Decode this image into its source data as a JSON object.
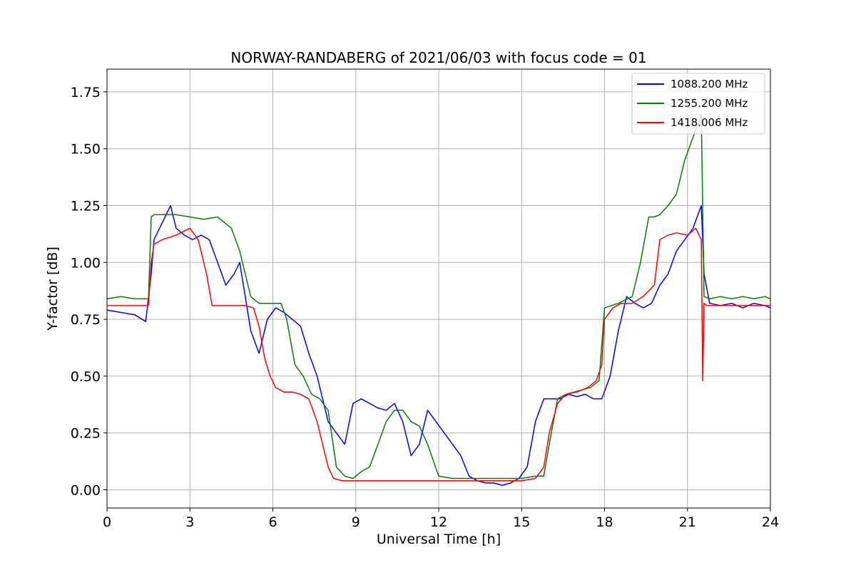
{
  "chart_data": {
    "type": "line",
    "title": "NORWAY-RANDABERG of 2021/06/03 with focus code = 01",
    "xlabel": "Universal Time [h]",
    "ylabel": "Y-factor [dB]",
    "xlim": [
      0,
      24
    ],
    "ylim": [
      -0.08,
      1.85
    ],
    "xticks": [
      0,
      3,
      6,
      9,
      12,
      15,
      18,
      21,
      24
    ],
    "xtick_labels": [
      "0",
      "3",
      "6",
      "9",
      "12",
      "15",
      "18",
      "21",
      "24"
    ],
    "yticks": [
      0.0,
      0.25,
      0.5,
      0.75,
      1.0,
      1.25,
      1.5,
      1.75
    ],
    "ytick_labels": [
      "0.00",
      "0.25",
      "0.50",
      "0.75",
      "1.00",
      "1.25",
      "1.50",
      "1.75"
    ],
    "grid": true,
    "legend_position": "upper-right",
    "series": [
      {
        "name": "1088.200 MHz",
        "color": "#0000ff",
        "x": [
          0,
          0.5,
          1.0,
          1.4,
          1.6,
          1.7,
          1.9,
          2.1,
          2.3,
          2.5,
          2.8,
          3.1,
          3.4,
          3.7,
          4.0,
          4.3,
          4.6,
          4.8,
          5.0,
          5.2,
          5.5,
          5.8,
          6.1,
          6.4,
          6.7,
          7.0,
          7.3,
          7.6,
          7.8,
          8.0,
          8.3,
          8.6,
          8.9,
          9.2,
          9.5,
          9.8,
          10.1,
          10.4,
          10.7,
          11.0,
          11.3,
          11.6,
          11.9,
          12.2,
          12.5,
          12.8,
          13.1,
          13.4,
          13.7,
          14.0,
          14.3,
          14.6,
          14.9,
          15.2,
          15.5,
          15.8,
          16.1,
          16.4,
          16.7,
          17.0,
          17.3,
          17.6,
          17.9,
          18.2,
          18.5,
          18.8,
          19.1,
          19.4,
          19.7,
          20.0,
          20.3,
          20.6,
          20.9,
          21.2,
          21.5,
          21.6,
          21.8,
          22.2,
          22.6,
          23.0,
          23.4,
          23.8,
          24.0
        ],
        "y": [
          0.79,
          0.78,
          0.77,
          0.74,
          0.95,
          1.1,
          1.15,
          1.2,
          1.25,
          1.15,
          1.12,
          1.1,
          1.12,
          1.1,
          1.0,
          0.9,
          0.95,
          1.0,
          0.85,
          0.7,
          0.6,
          0.75,
          0.8,
          0.78,
          0.75,
          0.72,
          0.6,
          0.5,
          0.4,
          0.3,
          0.25,
          0.2,
          0.38,
          0.4,
          0.38,
          0.36,
          0.35,
          0.38,
          0.3,
          0.15,
          0.2,
          0.35,
          0.3,
          0.25,
          0.2,
          0.15,
          0.06,
          0.04,
          0.03,
          0.03,
          0.02,
          0.03,
          0.05,
          0.1,
          0.3,
          0.4,
          0.4,
          0.4,
          0.42,
          0.41,
          0.42,
          0.4,
          0.4,
          0.5,
          0.7,
          0.85,
          0.82,
          0.8,
          0.82,
          0.9,
          0.95,
          1.05,
          1.1,
          1.15,
          1.25,
          0.95,
          0.82,
          0.81,
          0.82,
          0.8,
          0.82,
          0.81,
          0.8
        ]
      },
      {
        "name": "1255.200 MHz",
        "color": "#008000",
        "x": [
          0,
          0.5,
          1.0,
          1.5,
          1.6,
          1.7,
          2.0,
          2.5,
          3.0,
          3.5,
          4.0,
          4.5,
          4.8,
          5.0,
          5.2,
          5.5,
          6.0,
          6.3,
          6.5,
          6.8,
          7.1,
          7.4,
          7.7,
          8.0,
          8.3,
          8.6,
          8.9,
          9.2,
          9.5,
          9.8,
          10.1,
          10.4,
          10.7,
          11.0,
          11.3,
          11.6,
          12.0,
          12.5,
          13.0,
          13.5,
          14.0,
          14.5,
          15.0,
          15.5,
          15.8,
          16.0,
          16.3,
          16.6,
          16.9,
          17.2,
          17.5,
          17.8,
          18.0,
          18.5,
          19.0,
          19.3,
          19.6,
          19.8,
          20.0,
          20.3,
          20.6,
          20.9,
          21.2,
          21.5,
          21.6,
          21.8,
          22.2,
          22.6,
          23.0,
          23.4,
          23.8,
          24.0
        ],
        "y": [
          0.84,
          0.85,
          0.84,
          0.84,
          1.2,
          1.21,
          1.21,
          1.21,
          1.2,
          1.19,
          1.2,
          1.15,
          1.05,
          0.95,
          0.85,
          0.82,
          0.82,
          0.82,
          0.75,
          0.55,
          0.5,
          0.42,
          0.4,
          0.35,
          0.1,
          0.06,
          0.05,
          0.08,
          0.1,
          0.2,
          0.3,
          0.35,
          0.35,
          0.3,
          0.28,
          0.2,
          0.06,
          0.05,
          0.05,
          0.05,
          0.05,
          0.05,
          0.05,
          0.06,
          0.06,
          0.2,
          0.4,
          0.42,
          0.43,
          0.44,
          0.45,
          0.48,
          0.8,
          0.82,
          0.85,
          1.0,
          1.2,
          1.2,
          1.21,
          1.25,
          1.3,
          1.45,
          1.55,
          1.65,
          0.85,
          0.84,
          0.85,
          0.84,
          0.85,
          0.84,
          0.85,
          0.84
        ]
      },
      {
        "name": "1418.006 MHz",
        "color": "#ff0000",
        "x": [
          0,
          0.5,
          1.0,
          1.5,
          1.6,
          1.7,
          2.0,
          2.5,
          3.0,
          3.3,
          3.6,
          3.8,
          4.0,
          4.5,
          5.0,
          5.3,
          5.5,
          5.7,
          5.9,
          6.1,
          6.4,
          6.7,
          7.0,
          7.3,
          7.6,
          7.8,
          8.0,
          8.2,
          8.5,
          9.0,
          10.0,
          11.0,
          12.0,
          13.0,
          14.0,
          15.0,
          15.5,
          15.8,
          16.0,
          16.3,
          16.6,
          17.0,
          17.4,
          17.7,
          17.9,
          18.0,
          18.3,
          18.6,
          19.0,
          19.4,
          19.8,
          20.0,
          20.3,
          20.6,
          21.0,
          21.3,
          21.5,
          21.55,
          21.6,
          21.7,
          22.0,
          22.5,
          23.0,
          23.5,
          24.0
        ],
        "y": [
          0.81,
          0.81,
          0.81,
          0.81,
          1.0,
          1.08,
          1.1,
          1.12,
          1.15,
          1.1,
          0.95,
          0.81,
          0.81,
          0.81,
          0.81,
          0.8,
          0.72,
          0.58,
          0.5,
          0.45,
          0.43,
          0.43,
          0.42,
          0.4,
          0.3,
          0.2,
          0.1,
          0.05,
          0.04,
          0.04,
          0.04,
          0.04,
          0.04,
          0.04,
          0.04,
          0.04,
          0.05,
          0.1,
          0.25,
          0.38,
          0.42,
          0.43,
          0.45,
          0.48,
          0.55,
          0.75,
          0.8,
          0.82,
          0.82,
          0.85,
          0.9,
          1.1,
          1.12,
          1.13,
          1.12,
          1.15,
          1.1,
          0.48,
          0.82,
          0.81,
          0.81,
          0.81,
          0.81,
          0.81,
          0.81
        ]
      }
    ]
  }
}
